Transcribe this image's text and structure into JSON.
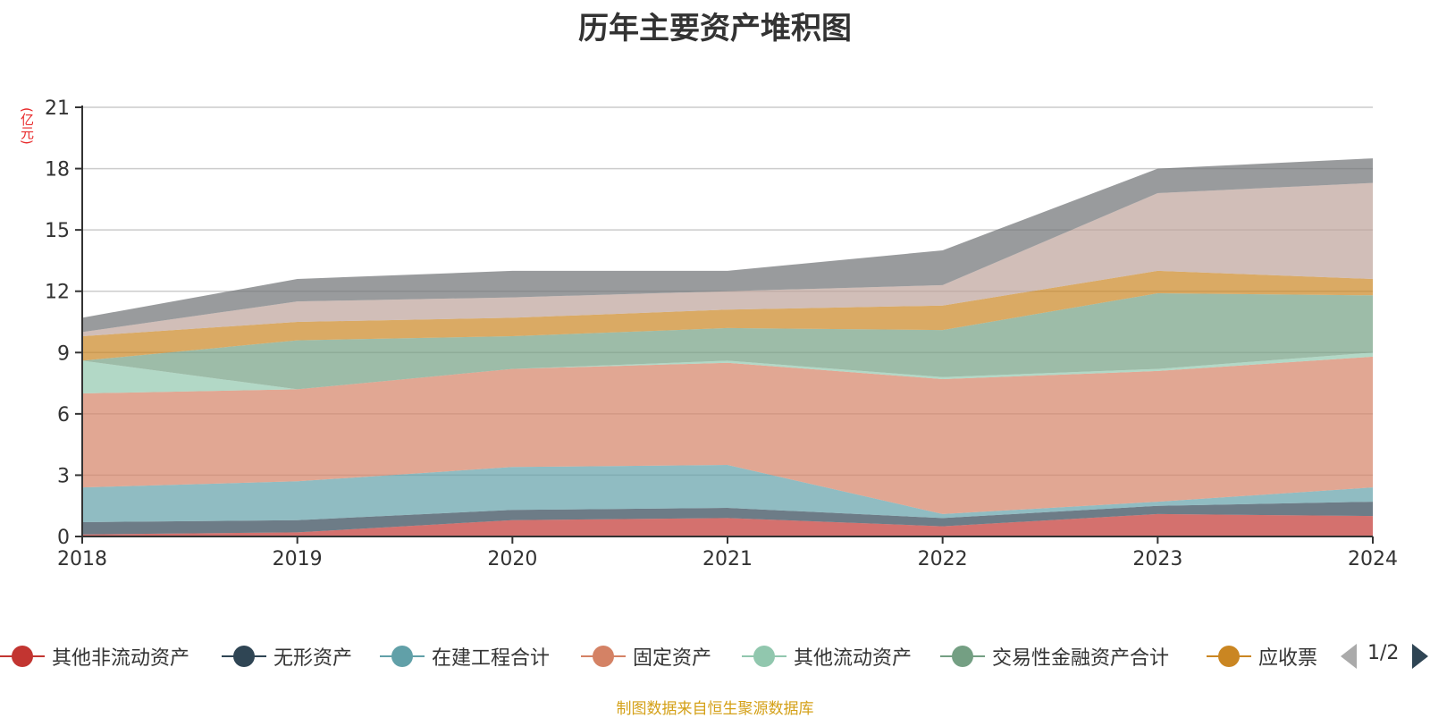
{
  "chart_data": {
    "type": "area",
    "stacked": true,
    "title": "历年主要资产堆积图",
    "unit_label": "(亿元)",
    "source_note": "制图数据来自恒生聚源数据库",
    "x": [
      "2018",
      "2019",
      "2020",
      "2021",
      "2022",
      "2023",
      "2024"
    ],
    "ylim": [
      0,
      21
    ],
    "yticks": [
      0,
      3,
      6,
      9,
      12,
      15,
      18,
      21
    ],
    "grid": true,
    "legend_position": "bottom",
    "pager": "1/2",
    "series": [
      {
        "name": "其他非流动资产",
        "color": "#c23531",
        "values": [
          0.1,
          0.2,
          0.8,
          0.9,
          0.5,
          1.1,
          1.0
        ]
      },
      {
        "name": "无形资产",
        "color": "#2f4554",
        "values": [
          0.6,
          0.6,
          0.5,
          0.5,
          0.4,
          0.4,
          0.7
        ]
      },
      {
        "name": "在建工程合计",
        "color": "#61a0a8",
        "values": [
          1.7,
          1.9,
          2.1,
          2.1,
          0.2,
          0.2,
          0.7
        ]
      },
      {
        "name": "固定资产",
        "color": "#d48265",
        "values": [
          4.6,
          4.5,
          4.8,
          5.0,
          6.6,
          6.4,
          6.4
        ]
      },
      {
        "name": "其他流动资产",
        "color": "#91c7ae",
        "values": [
          1.6,
          0.0,
          0.0,
          0.1,
          0.1,
          0.1,
          0.2
        ]
      },
      {
        "name": "交易性金融资产合计",
        "color": "#749f83",
        "values": [
          0.0,
          2.4,
          1.6,
          1.6,
          2.3,
          3.7,
          2.8
        ]
      },
      {
        "name": "应收票",
        "color": "#ca8622",
        "values": [
          1.2,
          0.9,
          0.9,
          0.9,
          1.2,
          1.1,
          0.8
        ]
      },
      {
        "name": "",
        "color": "#bda29a",
        "values": [
          0.2,
          1.0,
          1.0,
          0.9,
          1.0,
          3.8,
          4.7
        ]
      },
      {
        "name": "",
        "color": "#6e7074",
        "values": [
          0.7,
          1.1,
          1.3,
          1.0,
          1.7,
          1.2,
          1.2
        ]
      }
    ]
  }
}
